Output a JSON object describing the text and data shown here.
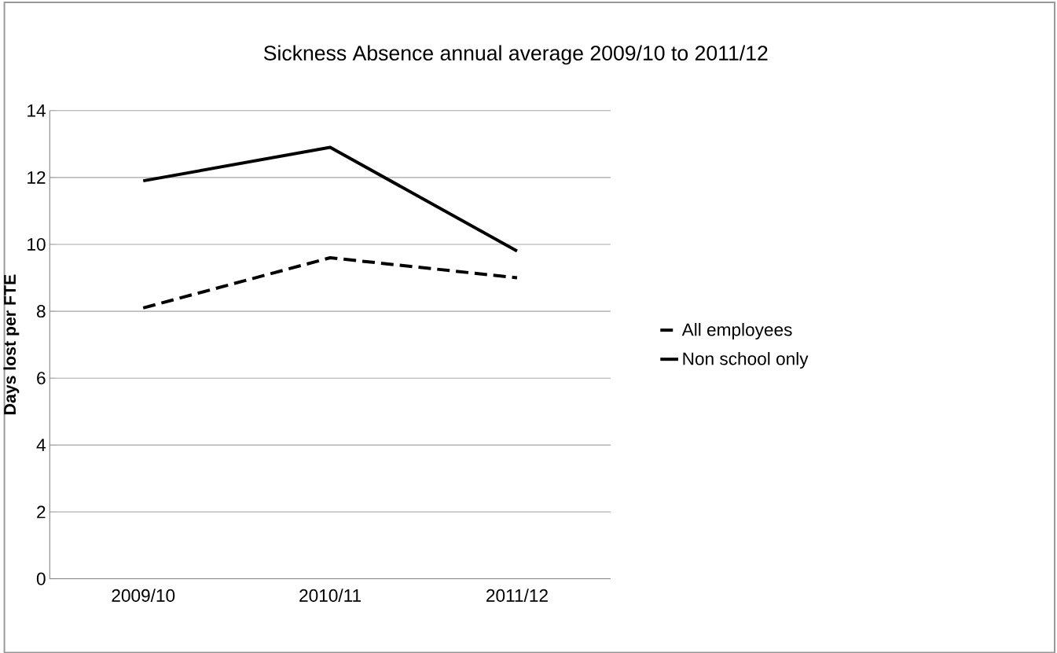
{
  "chart_data": {
    "type": "line",
    "title": "Sickness Absence annual average 2009/10 to 2011/12",
    "ylabel": "Days lost per FTE",
    "categories": [
      "2009/10",
      "2010/11",
      "2011/12"
    ],
    "series": [
      {
        "name": "All employees",
        "color": "#000000",
        "line_style": "dashed",
        "values": [
          8.1,
          9.6,
          9.0
        ]
      },
      {
        "name": "Non school only",
        "color": "#000000",
        "line_style": "solid",
        "values": [
          11.9,
          12.9,
          9.8
        ]
      }
    ],
    "ylim": [
      0,
      14
    ],
    "yticks": [
      0,
      2,
      4,
      6,
      8,
      10,
      12,
      14
    ],
    "grid": "y",
    "legend": "right",
    "marker": "none"
  }
}
